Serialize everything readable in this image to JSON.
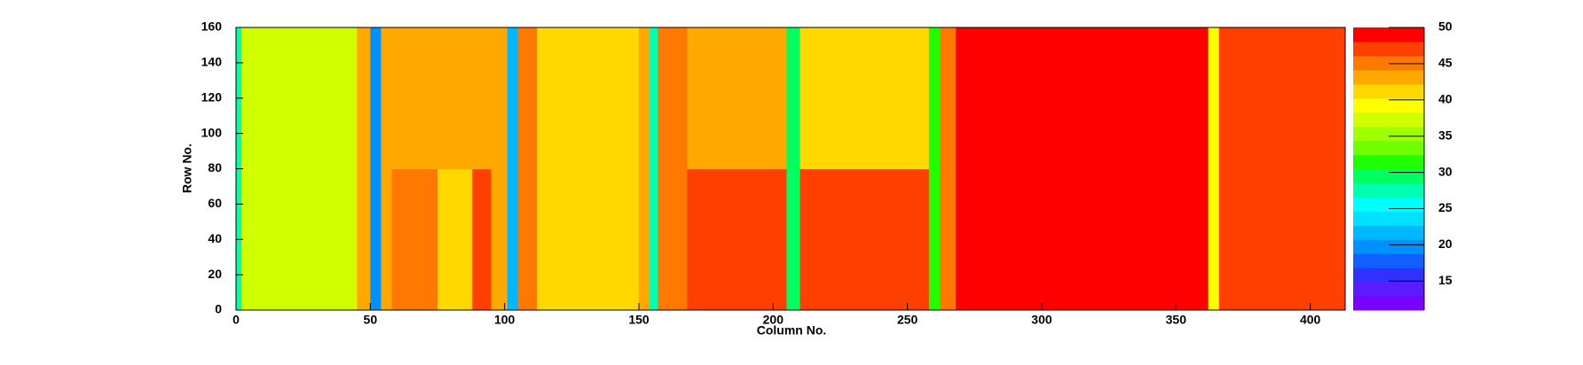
{
  "chart_data": {
    "type": "heatmap",
    "x_label": "Column No.",
    "y_label": "Row No.",
    "xbins": [
      0,
      2,
      45,
      50,
      54,
      58,
      75,
      88,
      95,
      101,
      105,
      112,
      150,
      154,
      157,
      168,
      205,
      210,
      258,
      262,
      268,
      362,
      366,
      413
    ],
    "ybins": [
      0,
      80,
      160
    ],
    "values": [
      [
        28,
        38,
        43,
        20,
        43,
        45,
        42,
        47,
        43,
        22,
        45,
        41,
        43,
        27,
        46,
        47,
        30,
        47,
        32,
        45,
        49,
        40,
        48
      ],
      [
        28,
        38,
        43,
        20,
        43,
        43,
        44,
        43,
        43,
        22,
        45,
        42,
        43,
        27,
        46,
        44,
        30,
        42,
        32,
        45,
        49,
        40,
        48
      ]
    ],
    "xlim": [
      0,
      413
    ],
    "ylim": [
      0,
      160
    ],
    "xticks": [
      0,
      50,
      100,
      150,
      200,
      250,
      300,
      350,
      400
    ],
    "yticks": [
      0,
      20,
      40,
      60,
      80,
      100,
      120,
      140,
      160
    ],
    "zlim": [
      11,
      50
    ],
    "zticks": [
      15,
      20,
      25,
      30,
      35,
      40,
      45,
      50
    ],
    "colorscale": [
      "#7a00ff",
      "#5a1cff",
      "#3030ff",
      "#1060ff",
      "#0090ff",
      "#00b8ff",
      "#00e0ff",
      "#00ffff",
      "#00ffb0",
      "#00ff60",
      "#20ff00",
      "#70ff00",
      "#a0ff00",
      "#d0ff00",
      "#ffff00",
      "#ffd800",
      "#ffa800",
      "#ff7800",
      "#ff4000",
      "#ff0000"
    ]
  }
}
